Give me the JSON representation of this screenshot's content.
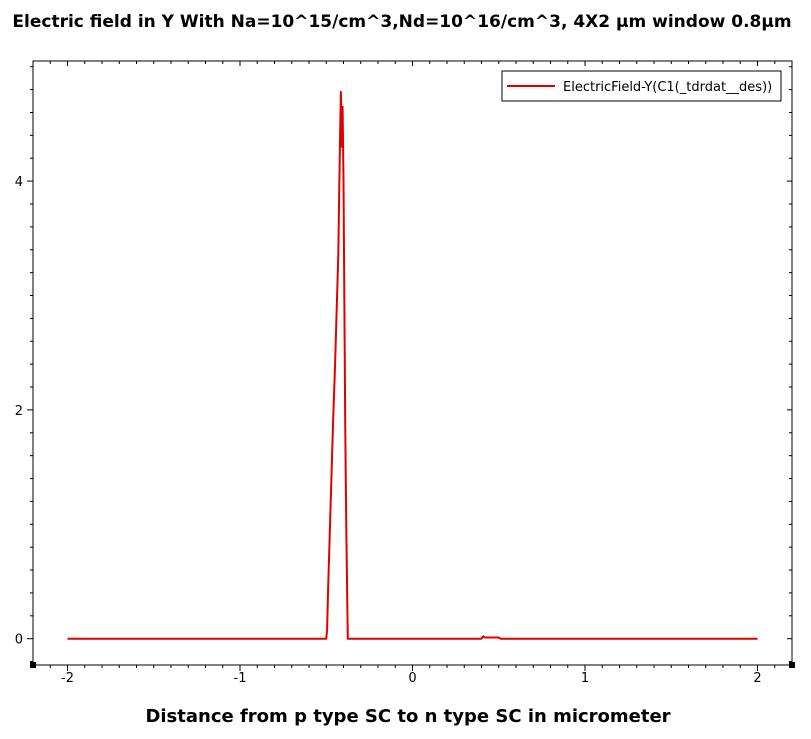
{
  "chart_data": {
    "type": "line",
    "title": "Electric field in Y With Na=10^15/cm^3,Nd=10^16/cm^3, 4X2 μm window 0.8μm",
    "xlabel": "Distance from p type SC to n type SC in micrometer",
    "ylabel": "",
    "xlim": [
      -2.2,
      2.2
    ],
    "ylim": [
      -0.23,
      5.05
    ],
    "x_ticks": [
      -2,
      -1,
      0,
      1,
      2
    ],
    "x_tick_labels": [
      "-2",
      "-1",
      "0",
      "1",
      "2"
    ],
    "y_ticks": [
      0,
      2,
      4
    ],
    "y_tick_labels": [
      "0",
      "2",
      "4"
    ],
    "grid": false,
    "legend_position": "top-right",
    "series": [
      {
        "name": "ElectricField-Y(C1(_tdrdat__des))",
        "color": "#e00000",
        "x": [
          -2.0,
          -0.5,
          -0.495,
          -0.49,
          -0.48,
          -0.47,
          -0.46,
          -0.45,
          -0.44,
          -0.43,
          -0.425,
          -0.42,
          -0.415,
          -0.41,
          -0.405,
          -0.4,
          -0.395,
          -0.39,
          -0.385,
          -0.38,
          -0.375,
          0.4,
          0.41,
          0.42,
          0.5,
          0.51,
          2.0
        ],
        "y": [
          0.0,
          0.0,
          0.08,
          0.4,
          0.9,
          1.4,
          1.9,
          2.35,
          2.85,
          3.35,
          3.9,
          4.4,
          4.78,
          4.3,
          4.65,
          4.0,
          2.9,
          1.9,
          1.1,
          0.5,
          0.0,
          0.0,
          0.02,
          0.01,
          0.01,
          0.0,
          0.0
        ]
      }
    ]
  }
}
